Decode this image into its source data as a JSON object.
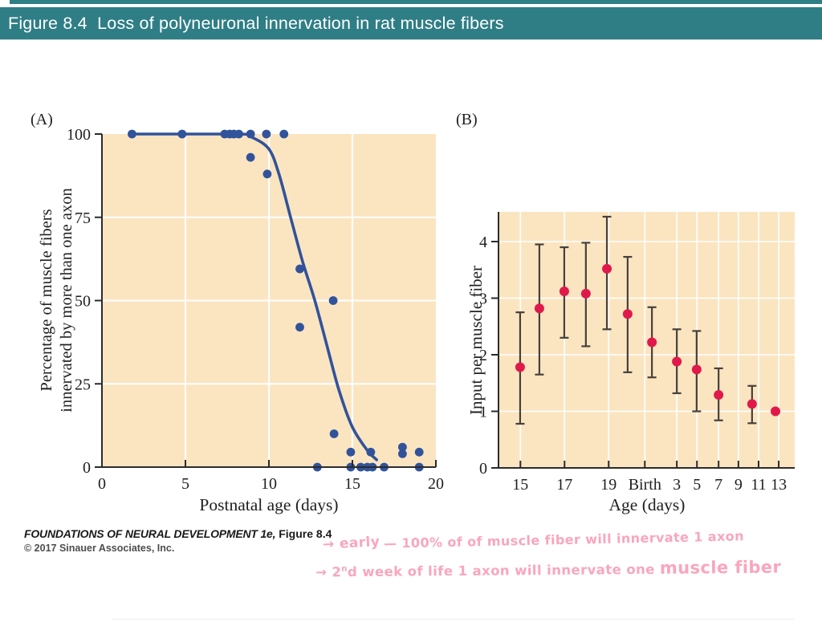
{
  "header": {
    "title": "Figure 8.4  Loss of polyneuronal innervation in rat muscle fibers",
    "bar_color": "#2F7E86"
  },
  "footer": {
    "book": "FOUNDATIONS OF NEURAL DEVELOPMENT 1e,",
    "figure_ref": " Figure 8.4",
    "copyright": "© 2017 Sinauer Associates, Inc."
  },
  "annotations": {
    "color": "#F9A6BC",
    "line1_lead": "→ early",
    "line1_body": "— 100% of of muscle fiber will innervate 1 axon",
    "line2_start": "→ 2",
    "line2_sup": "n",
    "line2_mid": "d week of life 1 axon will innervate one ",
    "line2_big": "muscle fiber"
  },
  "chart_data": [
    {
      "id": "A",
      "type": "scatter",
      "panel_label": "(A)",
      "xlabel": "Postnatal age (days)",
      "ylabel_lines": [
        "Percentage of muscle fibers",
        "innervated by more than one axon"
      ],
      "xlim": [
        0,
        20
      ],
      "ylim": [
        0,
        100
      ],
      "xticks": [
        0,
        5,
        10,
        15,
        20
      ],
      "yticks": [
        0,
        25,
        50,
        75,
        100
      ],
      "grid_x": [
        5,
        10,
        15
      ],
      "grid_y": [
        25,
        50,
        75
      ],
      "grid_on": true,
      "colors": {
        "point": "#31539B",
        "curve": "#31539B",
        "bg": "#FBE5C1",
        "axis": "#2B2B2B",
        "grid": "#FFFFFF"
      },
      "points": [
        [
          1.8,
          100
        ],
        [
          4.8,
          100
        ],
        [
          7.35,
          100
        ],
        [
          7.65,
          100
        ],
        [
          7.9,
          100
        ],
        [
          8.2,
          100
        ],
        [
          8.9,
          100
        ],
        [
          9.85,
          100
        ],
        [
          10.9,
          100
        ],
        [
          8.9,
          93
        ],
        [
          9.9,
          88
        ],
        [
          11.85,
          59.5
        ],
        [
          11.85,
          42
        ],
        [
          13.85,
          50
        ],
        [
          13.9,
          10
        ],
        [
          14.9,
          4.5
        ],
        [
          16.1,
          4.5
        ],
        [
          18.0,
          6
        ],
        [
          18.0,
          4
        ],
        [
          19.0,
          4.5
        ],
        [
          12.9,
          0
        ],
        [
          14.9,
          0
        ],
        [
          15.5,
          0
        ],
        [
          15.9,
          0
        ],
        [
          16.2,
          0
        ],
        [
          16.9,
          0
        ],
        [
          19.0,
          0
        ]
      ],
      "curve": [
        [
          1.8,
          100
        ],
        [
          8.3,
          100
        ],
        [
          9.0,
          99
        ],
        [
          10.0,
          95.5
        ],
        [
          10.6,
          88
        ],
        [
          11.3,
          75
        ],
        [
          12.0,
          62
        ],
        [
          12.75,
          50
        ],
        [
          13.5,
          36
        ],
        [
          14.2,
          23
        ],
        [
          15.0,
          12
        ],
        [
          15.9,
          5
        ],
        [
          16.45,
          2.2
        ]
      ]
    },
    {
      "id": "B",
      "type": "scatter-errorbar",
      "panel_label": "(B)",
      "xlabel": "Age (days)",
      "ylabel": "Input per muscle fiber",
      "ylim": [
        0,
        4.525
      ],
      "yticks": [
        0,
        1,
        2,
        3,
        4
      ],
      "x_axis_note": "embryonic days 15-19, Birth, then postnatal days 3-13; positions given as axis fractions",
      "xticks": [
        {
          "f": 0.074,
          "label": "15"
        },
        {
          "f": 0.223,
          "label": "17"
        },
        {
          "f": 0.372,
          "label": "19"
        },
        {
          "f": 0.494,
          "label": "Birth"
        },
        {
          "f": 0.602,
          "label": "3"
        },
        {
          "f": 0.67,
          "label": "5"
        },
        {
          "f": 0.743,
          "label": "7"
        },
        {
          "f": 0.81,
          "label": "9"
        },
        {
          "f": 0.878,
          "label": "11"
        },
        {
          "f": 0.946,
          "label": "13"
        }
      ],
      "grid_on": true,
      "colors": {
        "point": "#E1194A",
        "error": "#46413B",
        "bg": "#FBE5C1",
        "axis": "#2B2B2B",
        "grid": "#FFFFFF"
      },
      "points": [
        {
          "f": 0.073,
          "y": 1.78,
          "lo": 0.78,
          "hi": 2.75
        },
        {
          "f": 0.138,
          "y": 2.82,
          "lo": 1.65,
          "hi": 3.95
        },
        {
          "f": 0.222,
          "y": 3.12,
          "lo": 2.3,
          "hi": 3.9
        },
        {
          "f": 0.295,
          "y": 3.08,
          "lo": 2.15,
          "hi": 3.98
        },
        {
          "f": 0.366,
          "y": 3.52,
          "lo": 2.45,
          "hi": 4.44
        },
        {
          "f": 0.436,
          "y": 2.72,
          "lo": 1.69,
          "hi": 3.73
        },
        {
          "f": 0.518,
          "y": 2.22,
          "lo": 1.6,
          "hi": 2.84
        },
        {
          "f": 0.602,
          "y": 1.88,
          "lo": 1.32,
          "hi": 2.45
        },
        {
          "f": 0.669,
          "y": 1.74,
          "lo": 1.0,
          "hi": 2.42
        },
        {
          "f": 0.743,
          "y": 1.29,
          "lo": 0.84,
          "hi": 1.76
        },
        {
          "f": 0.856,
          "y": 1.13,
          "lo": 0.79,
          "hi": 1.45
        },
        {
          "f": 0.935,
          "y": 1.0,
          "lo": null,
          "hi": null
        }
      ]
    }
  ]
}
